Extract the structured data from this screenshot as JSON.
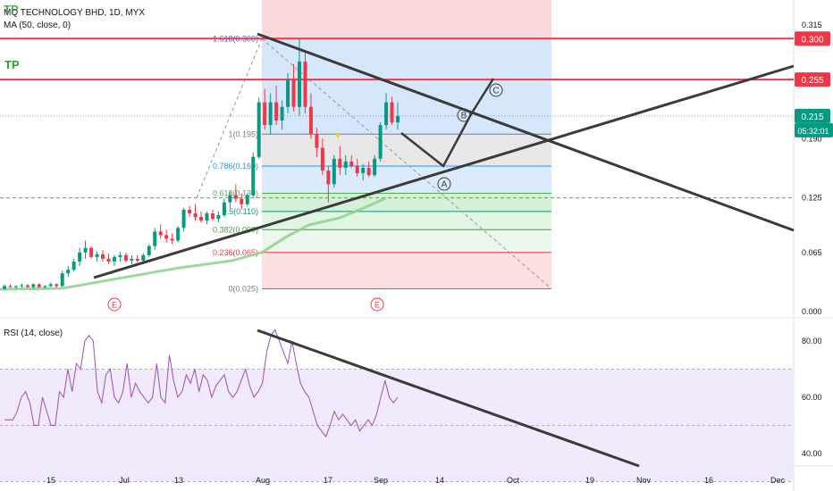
{
  "chart_data": [
    {
      "type": "candlestick",
      "title": "MQ TECHNOLOGY BHD, 1D, MYX",
      "indicator_label": "MA (50, close, 0)",
      "annotations": [
        "TP",
        "TP"
      ],
      "y_ticks": [
        "0.315",
        "0.190",
        "0.125",
        "0.065",
        "0.000"
      ],
      "ylim": [
        0,
        0.33
      ],
      "horizontal_lines": [
        {
          "value": 0.3,
          "label": "0.300",
          "color": "#f23645"
        },
        {
          "value": 0.255,
          "label": "0.255",
          "color": "#f23645"
        }
      ],
      "last_price": {
        "value": 0.215,
        "label": "0.215",
        "countdown": "05:32:01"
      },
      "fibonacci_levels": [
        {
          "label": "1.618(0.300)",
          "value": 0.3,
          "color": "#2962ff"
        },
        {
          "label": "1(0.195)",
          "value": 0.195,
          "color": "#787b86"
        },
        {
          "label": "0.786(0.160)",
          "value": 0.16,
          "color": "#2196f3"
        },
        {
          "label": "0.618(0.130)",
          "value": 0.13,
          "color": "#4caf50"
        },
        {
          "label": "0.5(0.110)",
          "value": 0.11,
          "color": "#089981"
        },
        {
          "label": "0.382(0.090)",
          "value": 0.09,
          "color": "#43a047"
        },
        {
          "label": "0.236(0.065)",
          "value": 0.065,
          "color": "#f23645"
        },
        {
          "label": "0(0.025)",
          "value": 0.025,
          "color": "#787b86"
        }
      ],
      "wave_labels": [
        "A",
        "B",
        "C"
      ],
      "event_markers": [
        "E",
        "E"
      ],
      "x_ticks": [
        "15",
        "Jul",
        "13",
        "Aug",
        "17",
        "Sep",
        "14",
        "Oct",
        "19",
        "Nov",
        "16",
        "Dec"
      ],
      "ohlc": [
        [
          0.025,
          0.03,
          0.024,
          0.028
        ],
        [
          0.028,
          0.03,
          0.026,
          0.027
        ],
        [
          0.027,
          0.029,
          0.025,
          0.028
        ],
        [
          0.028,
          0.031,
          0.026,
          0.029
        ],
        [
          0.029,
          0.03,
          0.026,
          0.027
        ],
        [
          0.027,
          0.031,
          0.025,
          0.03
        ],
        [
          0.03,
          0.031,
          0.026,
          0.027
        ],
        [
          0.027,
          0.029,
          0.025,
          0.028
        ],
        [
          0.028,
          0.032,
          0.027,
          0.03
        ],
        [
          0.03,
          0.031,
          0.026,
          0.028
        ],
        [
          0.028,
          0.045,
          0.027,
          0.042
        ],
        [
          0.042,
          0.05,
          0.038,
          0.046
        ],
        [
          0.046,
          0.058,
          0.044,
          0.055
        ],
        [
          0.055,
          0.07,
          0.05,
          0.065
        ],
        [
          0.065,
          0.078,
          0.058,
          0.07
        ],
        [
          0.07,
          0.072,
          0.058,
          0.06
        ],
        [
          0.06,
          0.066,
          0.055,
          0.063
        ],
        [
          0.063,
          0.068,
          0.055,
          0.058
        ],
        [
          0.058,
          0.064,
          0.052,
          0.055
        ],
        [
          0.055,
          0.062,
          0.05,
          0.06
        ],
        [
          0.06,
          0.066,
          0.055,
          0.062
        ],
        [
          0.062,
          0.065,
          0.054,
          0.056
        ],
        [
          0.056,
          0.062,
          0.052,
          0.058
        ],
        [
          0.058,
          0.062,
          0.054,
          0.056
        ],
        [
          0.056,
          0.064,
          0.052,
          0.062
        ],
        [
          0.062,
          0.074,
          0.06,
          0.072
        ],
        [
          0.072,
          0.092,
          0.068,
          0.088
        ],
        [
          0.088,
          0.096,
          0.08,
          0.084
        ],
        [
          0.084,
          0.09,
          0.076,
          0.08
        ],
        [
          0.08,
          0.086,
          0.074,
          0.078
        ],
        [
          0.078,
          0.094,
          0.076,
          0.092
        ],
        [
          0.092,
          0.114,
          0.088,
          0.112
        ],
        [
          0.112,
          0.116,
          0.104,
          0.108
        ],
        [
          0.108,
          0.118,
          0.1,
          0.104
        ],
        [
          0.104,
          0.11,
          0.098,
          0.1
        ],
        [
          0.1,
          0.11,
          0.096,
          0.108
        ],
        [
          0.108,
          0.112,
          0.1,
          0.102
        ],
        [
          0.102,
          0.11,
          0.098,
          0.106
        ],
        [
          0.106,
          0.124,
          0.104,
          0.12
        ],
        [
          0.12,
          0.132,
          0.114,
          0.128
        ],
        [
          0.128,
          0.14,
          0.12,
          0.124
        ],
        [
          0.124,
          0.13,
          0.112,
          0.118
        ],
        [
          0.118,
          0.13,
          0.116,
          0.128
        ],
        [
          0.128,
          0.175,
          0.126,
          0.17
        ],
        [
          0.17,
          0.235,
          0.168,
          0.23
        ],
        [
          0.23,
          0.245,
          0.2,
          0.205
        ],
        [
          0.205,
          0.24,
          0.195,
          0.23
        ],
        [
          0.23,
          0.248,
          0.205,
          0.21
        ],
        [
          0.21,
          0.232,
          0.2,
          0.225
        ],
        [
          0.225,
          0.262,
          0.218,
          0.255
        ],
        [
          0.255,
          0.272,
          0.22,
          0.225
        ],
        [
          0.225,
          0.3,
          0.215,
          0.275
        ],
        [
          0.275,
          0.286,
          0.218,
          0.225
        ],
        [
          0.225,
          0.24,
          0.19,
          0.195
        ],
        [
          0.195,
          0.202,
          0.17,
          0.18
        ],
        [
          0.18,
          0.19,
          0.15,
          0.155
        ],
        [
          0.155,
          0.16,
          0.12,
          0.14
        ],
        [
          0.14,
          0.172,
          0.136,
          0.168
        ],
        [
          0.168,
          0.182,
          0.15,
          0.158
        ],
        [
          0.158,
          0.172,
          0.15,
          0.165
        ],
        [
          0.165,
          0.172,
          0.158,
          0.16
        ],
        [
          0.16,
          0.168,
          0.148,
          0.152
        ],
        [
          0.152,
          0.162,
          0.144,
          0.158
        ],
        [
          0.158,
          0.165,
          0.148,
          0.15
        ],
        [
          0.15,
          0.172,
          0.148,
          0.168
        ],
        [
          0.168,
          0.208,
          0.165,
          0.205
        ],
        [
          0.205,
          0.24,
          0.2,
          0.23
        ],
        [
          0.23,
          0.236,
          0.205,
          0.208
        ],
        [
          0.208,
          0.23,
          0.2,
          0.215
        ]
      ]
    },
    {
      "type": "line",
      "title": "RSI (14, close)",
      "y_ticks": [
        "80.00",
        "60.00",
        "40.00"
      ],
      "ylim": [
        25,
        95
      ],
      "band": [
        30,
        70
      ],
      "series": [
        {
          "name": "",
          "values": [
            52,
            52,
            52,
            55,
            60,
            62,
            58,
            50,
            50,
            60,
            55,
            50,
            50,
            62,
            60,
            70,
            62,
            72,
            70,
            80,
            82,
            80,
            62,
            58,
            68,
            70,
            60,
            58,
            62,
            72,
            60,
            65,
            62,
            60,
            58,
            60,
            72,
            60,
            58,
            75,
            66,
            60,
            62,
            68,
            65,
            70,
            62,
            68,
            66,
            60,
            64,
            66,
            68,
            62,
            60,
            62,
            66,
            70,
            64,
            60,
            62,
            65,
            76,
            82,
            84,
            80,
            76,
            72,
            80,
            72,
            65,
            62,
            60,
            55,
            50,
            48,
            46,
            50,
            55,
            52,
            54,
            52,
            50,
            52,
            48,
            50,
            52,
            50,
            54,
            60,
            66,
            60,
            58,
            60
          ]
        }
      ]
    }
  ]
}
